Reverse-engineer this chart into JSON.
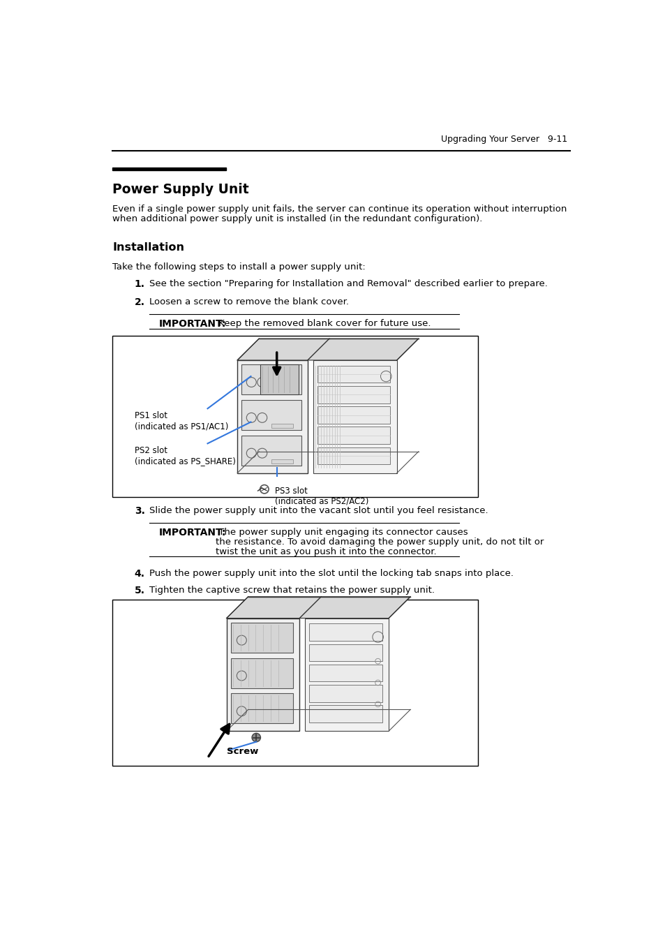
{
  "page_header_right": "Upgrading Your Server   9-11",
  "main_title": "Power Supply Unit",
  "intro_text_1": "Even if a single power supply unit fails, the server can continue its operation without interruption",
  "intro_text_2": "when additional power supply unit is installed (in the redundant configuration).",
  "section_title": "Installation",
  "step_intro": "Take the following steps to install a power supply unit:",
  "step1": "See the section \"Preparing for Installation and Removal\" described earlier to prepare.",
  "step2": "Loosen a screw to remove the blank cover.",
  "important_1_bold": "IMPORTANT:",
  "important_1_text": " Keep the removed blank cover for future use.",
  "label_ps1": "PS1 slot\n(indicated as PS1/AC1)",
  "label_ps2": "PS2 slot\n(indicated as PS_SHARE)",
  "label_ps3": "PS3 slot\n(indicated as PS2/AC2)",
  "step3": "Slide the power supply unit into the vacant slot until you feel resistance.",
  "important_2_bold": "IMPORTANT:",
  "important_2_line1": " The power supply unit engaging its connector causes",
  "important_2_line2": "the resistance. To avoid damaging the power supply unit, do not tilt or",
  "important_2_line3": "twist the unit as you push it into the connector.",
  "step4": "Push the power supply unit into the slot until the locking tab snaps into place.",
  "step5": "Tighten the captive screw that retains the power supply unit.",
  "label_screw": "Screw",
  "bg_color": "#ffffff",
  "text_color": "#000000"
}
